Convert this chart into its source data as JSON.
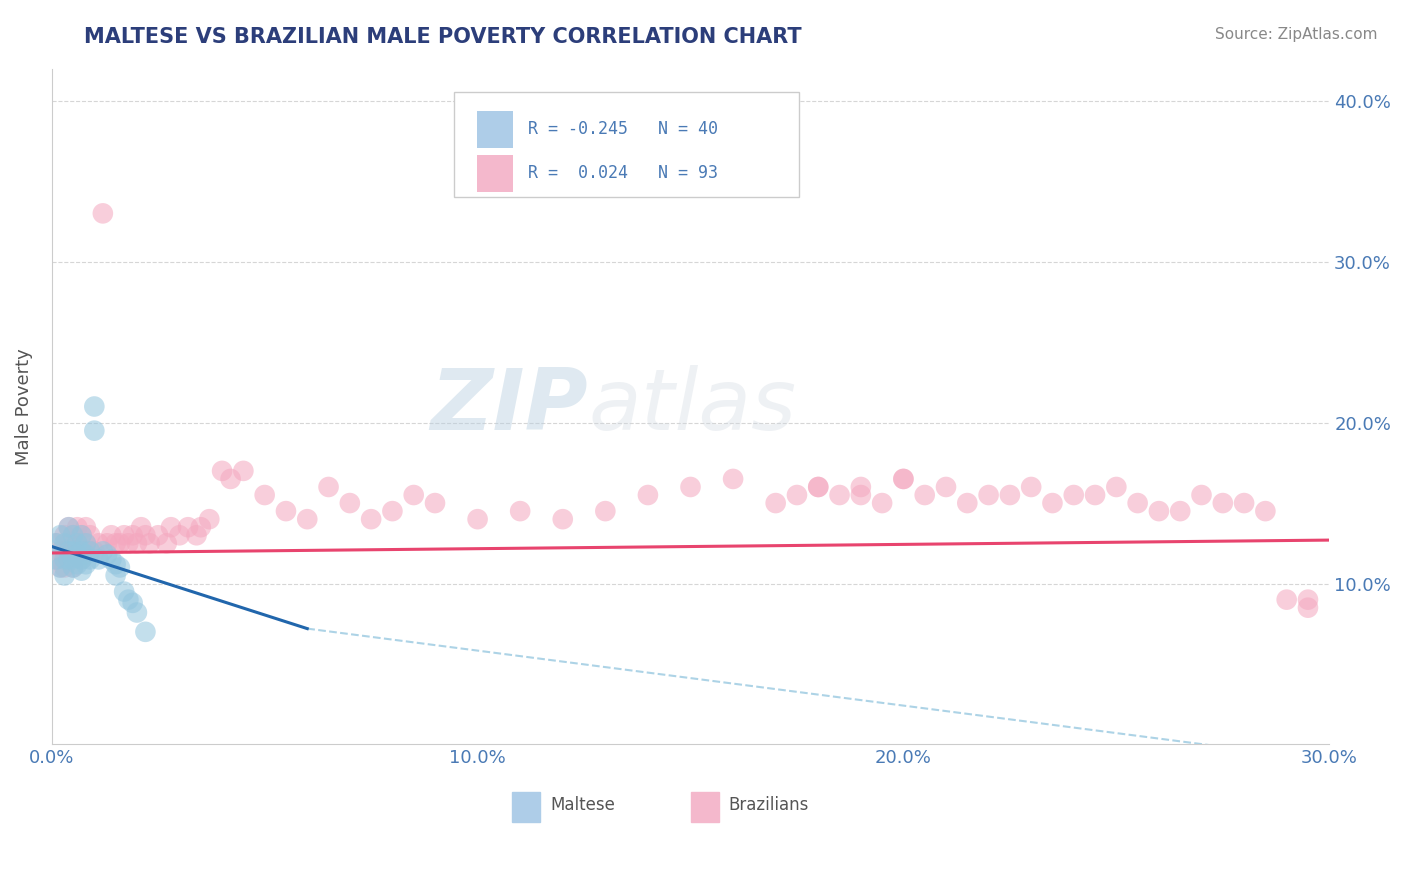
{
  "title": "MALTESE VS BRAZILIAN MALE POVERTY CORRELATION CHART",
  "source": "Source: ZipAtlas.com",
  "ylabel_label": "Male Poverty",
  "xlim": [
    0.0,
    0.3
  ],
  "ylim": [
    0.0,
    0.42
  ],
  "watermark_zip": "ZIP",
  "watermark_atlas": "atlas",
  "legend_maltese_R": "-0.245",
  "legend_maltese_N": "40",
  "legend_brazilian_R": "0.024",
  "legend_brazilian_N": "93",
  "maltese_color": "#92c5de",
  "brazilian_color": "#f4a6be",
  "maltese_line_color": "#2166ac",
  "maltese_dash_color": "#92c5de",
  "brazilian_line_color": "#e8446e",
  "background_color": "#ffffff",
  "grid_color": "#cccccc",
  "title_color": "#2c3e7a",
  "tick_color": "#4a7ab5",
  "maltese_scatter_x": [
    0.001,
    0.001,
    0.002,
    0.002,
    0.003,
    0.003,
    0.003,
    0.004,
    0.004,
    0.004,
    0.005,
    0.005,
    0.005,
    0.005,
    0.006,
    0.006,
    0.006,
    0.007,
    0.007,
    0.007,
    0.007,
    0.008,
    0.008,
    0.008,
    0.009,
    0.009,
    0.01,
    0.01,
    0.011,
    0.012,
    0.013,
    0.014,
    0.015,
    0.015,
    0.016,
    0.017,
    0.018,
    0.019,
    0.02,
    0.022
  ],
  "maltese_scatter_y": [
    0.125,
    0.115,
    0.13,
    0.11,
    0.125,
    0.115,
    0.105,
    0.135,
    0.12,
    0.115,
    0.13,
    0.12,
    0.115,
    0.11,
    0.125,
    0.118,
    0.112,
    0.13,
    0.12,
    0.115,
    0.108,
    0.125,
    0.118,
    0.112,
    0.12,
    0.115,
    0.195,
    0.21,
    0.115,
    0.12,
    0.118,
    0.115,
    0.112,
    0.105,
    0.11,
    0.095,
    0.09,
    0.088,
    0.082,
    0.07
  ],
  "brazilian_scatter_x": [
    0.001,
    0.001,
    0.002,
    0.002,
    0.003,
    0.003,
    0.003,
    0.004,
    0.004,
    0.004,
    0.005,
    0.005,
    0.005,
    0.006,
    0.006,
    0.007,
    0.007,
    0.007,
    0.008,
    0.008,
    0.009,
    0.009,
    0.01,
    0.011,
    0.012,
    0.013,
    0.014,
    0.015,
    0.016,
    0.017,
    0.018,
    0.019,
    0.02,
    0.021,
    0.022,
    0.023,
    0.025,
    0.027,
    0.028,
    0.03,
    0.032,
    0.034,
    0.035,
    0.037,
    0.04,
    0.042,
    0.045,
    0.05,
    0.055,
    0.06,
    0.065,
    0.07,
    0.075,
    0.08,
    0.085,
    0.09,
    0.1,
    0.11,
    0.12,
    0.13,
    0.14,
    0.15,
    0.16,
    0.17,
    0.18,
    0.19,
    0.2,
    0.21,
    0.22,
    0.23,
    0.24,
    0.25,
    0.26,
    0.27,
    0.28,
    0.29,
    0.295,
    0.175,
    0.185,
    0.195,
    0.205,
    0.215,
    0.225,
    0.235,
    0.245,
    0.255,
    0.265,
    0.275,
    0.285,
    0.295,
    0.18,
    0.19,
    0.2
  ],
  "brazilian_scatter_y": [
    0.125,
    0.115,
    0.12,
    0.11,
    0.13,
    0.12,
    0.11,
    0.135,
    0.125,
    0.115,
    0.13,
    0.12,
    0.11,
    0.135,
    0.125,
    0.12,
    0.13,
    0.115,
    0.125,
    0.135,
    0.13,
    0.12,
    0.12,
    0.125,
    0.33,
    0.125,
    0.13,
    0.125,
    0.125,
    0.13,
    0.125,
    0.13,
    0.125,
    0.135,
    0.13,
    0.125,
    0.13,
    0.125,
    0.135,
    0.13,
    0.135,
    0.13,
    0.135,
    0.14,
    0.17,
    0.165,
    0.17,
    0.155,
    0.145,
    0.14,
    0.16,
    0.15,
    0.14,
    0.145,
    0.155,
    0.15,
    0.14,
    0.145,
    0.14,
    0.145,
    0.155,
    0.16,
    0.165,
    0.15,
    0.16,
    0.155,
    0.165,
    0.16,
    0.155,
    0.16,
    0.155,
    0.16,
    0.145,
    0.155,
    0.15,
    0.09,
    0.085,
    0.155,
    0.155,
    0.15,
    0.155,
    0.15,
    0.155,
    0.15,
    0.155,
    0.15,
    0.145,
    0.15,
    0.145,
    0.09,
    0.16,
    0.16,
    0.165
  ]
}
